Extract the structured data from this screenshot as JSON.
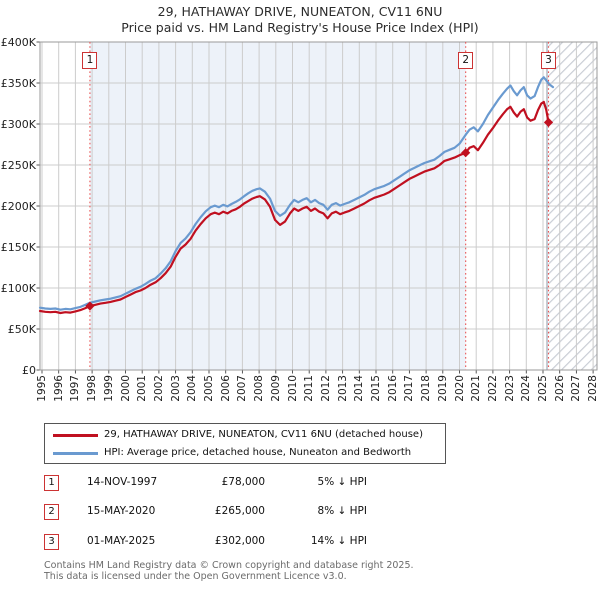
{
  "title": "29, HATHAWAY DRIVE, NUNEATON, CV11 6NU",
  "subtitle": "Price paid vs. HM Land Registry's House Price Index (HPI)",
  "chart_data": {
    "type": "line",
    "grid": true,
    "x_axis": {
      "tick_years": [
        1995,
        1996,
        1997,
        1998,
        1999,
        2000,
        2001,
        2002,
        2003,
        2004,
        2005,
        2006,
        2007,
        2008,
        2009,
        2010,
        2011,
        2012,
        2013,
        2014,
        2015,
        2016,
        2017,
        2018,
        2019,
        2020,
        2021,
        2022,
        2023,
        2024,
        2025,
        2026,
        2027,
        2028
      ],
      "range": [
        1994.85,
        2028.3
      ]
    },
    "y_axis": {
      "ticks": [
        {
          "value": 0,
          "label": "£0"
        },
        {
          "value": 50,
          "label": "£50K"
        },
        {
          "value": 100,
          "label": "£100K"
        },
        {
          "value": 150,
          "label": "£150K"
        },
        {
          "value": 200,
          "label": "£200K"
        },
        {
          "value": 250,
          "label": "£250K"
        },
        {
          "value": 300,
          "label": "£300K"
        },
        {
          "value": 350,
          "label": "£350K"
        },
        {
          "value": 400,
          "label": "£400K"
        }
      ],
      "unit": "£K",
      "range": [
        0,
        400
      ]
    },
    "shaded_region": {
      "from_year": 1997.87,
      "to_year": 2020.37,
      "color": "#edf2f9"
    },
    "hatched_region": {
      "from_year": 2025.33,
      "line_color": "#c9cdd5"
    },
    "marker_line_color": "#e85555",
    "series": [
      {
        "name": "price-paid",
        "color": "#c01020",
        "points": [
          [
            1994.88,
            72
          ],
          [
            1995.2,
            71
          ],
          [
            1995.5,
            70.5
          ],
          [
            1995.8,
            71
          ],
          [
            1996.1,
            69.5
          ],
          [
            1996.4,
            70.5
          ],
          [
            1996.7,
            70
          ],
          [
            1997.0,
            71.5
          ],
          [
            1997.3,
            73
          ],
          [
            1997.6,
            75.5
          ],
          [
            1997.87,
            78
          ],
          [
            1998.2,
            79.5
          ],
          [
            1998.5,
            81
          ],
          [
            1998.8,
            82
          ],
          [
            1999.1,
            83
          ],
          [
            1999.4,
            84.5
          ],
          [
            1999.7,
            86
          ],
          [
            2000.0,
            89
          ],
          [
            2000.3,
            92
          ],
          [
            2000.6,
            95
          ],
          [
            2000.9,
            97
          ],
          [
            2001.2,
            100
          ],
          [
            2001.5,
            104
          ],
          [
            2001.8,
            107
          ],
          [
            2002.1,
            112
          ],
          [
            2002.4,
            118
          ],
          [
            2002.7,
            126
          ],
          [
            2003.0,
            138
          ],
          [
            2003.3,
            148
          ],
          [
            2003.6,
            153
          ],
          [
            2003.9,
            160
          ],
          [
            2004.2,
            170
          ],
          [
            2004.5,
            178
          ],
          [
            2004.8,
            185
          ],
          [
            2005.1,
            190
          ],
          [
            2005.35,
            192
          ],
          [
            2005.6,
            190
          ],
          [
            2005.85,
            193
          ],
          [
            2006.1,
            191
          ],
          [
            2006.35,
            194
          ],
          [
            2006.6,
            196
          ],
          [
            2006.85,
            199
          ],
          [
            2007.1,
            203
          ],
          [
            2007.35,
            206
          ],
          [
            2007.6,
            209
          ],
          [
            2007.85,
            211
          ],
          [
            2008.05,
            212
          ],
          [
            2008.35,
            208
          ],
          [
            2008.65,
            199
          ],
          [
            2008.95,
            183
          ],
          [
            2009.25,
            177
          ],
          [
            2009.55,
            181
          ],
          [
            2009.85,
            191
          ],
          [
            2010.1,
            197
          ],
          [
            2010.35,
            194
          ],
          [
            2010.6,
            197
          ],
          [
            2010.85,
            199
          ],
          [
            2011.1,
            194
          ],
          [
            2011.35,
            197
          ],
          [
            2011.6,
            193
          ],
          [
            2011.85,
            191
          ],
          [
            2012.1,
            185
          ],
          [
            2012.35,
            191
          ],
          [
            2012.6,
            193
          ],
          [
            2012.85,
            190
          ],
          [
            2013.1,
            192
          ],
          [
            2013.4,
            194
          ],
          [
            2013.7,
            197
          ],
          [
            2014.0,
            200
          ],
          [
            2014.3,
            203
          ],
          [
            2014.6,
            207
          ],
          [
            2014.9,
            210
          ],
          [
            2015.2,
            212
          ],
          [
            2015.5,
            214
          ],
          [
            2015.8,
            217
          ],
          [
            2016.1,
            221
          ],
          [
            2016.4,
            225
          ],
          [
            2016.7,
            229
          ],
          [
            2017.0,
            233
          ],
          [
            2017.3,
            236
          ],
          [
            2017.6,
            239
          ],
          [
            2017.9,
            242
          ],
          [
            2018.2,
            244
          ],
          [
            2018.5,
            246
          ],
          [
            2018.8,
            250
          ],
          [
            2019.1,
            255
          ],
          [
            2019.4,
            257
          ],
          [
            2019.7,
            259
          ],
          [
            2020.0,
            262
          ],
          [
            2020.37,
            265
          ],
          [
            2020.6,
            271
          ],
          [
            2020.85,
            273
          ],
          [
            2021.1,
            268
          ],
          [
            2021.4,
            277
          ],
          [
            2021.7,
            287
          ],
          [
            2022.0,
            295
          ],
          [
            2022.3,
            304
          ],
          [
            2022.6,
            312
          ],
          [
            2022.85,
            318
          ],
          [
            2023.05,
            321
          ],
          [
            2023.25,
            314
          ],
          [
            2023.45,
            309
          ],
          [
            2023.65,
            315
          ],
          [
            2023.85,
            318
          ],
          [
            2024.05,
            308
          ],
          [
            2024.25,
            304
          ],
          [
            2024.5,
            306
          ],
          [
            2024.7,
            317
          ],
          [
            2024.9,
            325
          ],
          [
            2025.05,
            327
          ],
          [
            2025.2,
            317
          ],
          [
            2025.33,
            302
          ]
        ]
      },
      {
        "name": "hpi",
        "color": "#6a9ad0",
        "points": [
          [
            1994.88,
            76
          ],
          [
            1995.2,
            75
          ],
          [
            1995.5,
            74.5
          ],
          [
            1995.8,
            75
          ],
          [
            1996.1,
            73.5
          ],
          [
            1996.4,
            74.5
          ],
          [
            1996.7,
            74
          ],
          [
            1997.0,
            75.5
          ],
          [
            1997.3,
            77
          ],
          [
            1997.6,
            79.5
          ],
          [
            1997.87,
            82
          ],
          [
            1998.2,
            83.5
          ],
          [
            1998.5,
            85
          ],
          [
            1998.8,
            86
          ],
          [
            1999.1,
            87
          ],
          [
            1999.4,
            88.5
          ],
          [
            1999.7,
            90
          ],
          [
            2000.0,
            93
          ],
          [
            2000.3,
            96
          ],
          [
            2000.6,
            99
          ],
          [
            2000.9,
            101.5
          ],
          [
            2001.2,
            105
          ],
          [
            2001.5,
            109
          ],
          [
            2001.8,
            112
          ],
          [
            2002.1,
            117.5
          ],
          [
            2002.4,
            124
          ],
          [
            2002.7,
            132.5
          ],
          [
            2003.0,
            145
          ],
          [
            2003.3,
            155
          ],
          [
            2003.6,
            160.5
          ],
          [
            2003.9,
            168
          ],
          [
            2004.2,
            178
          ],
          [
            2004.5,
            186.5
          ],
          [
            2004.8,
            193.5
          ],
          [
            2005.1,
            198.5
          ],
          [
            2005.35,
            200.5
          ],
          [
            2005.6,
            198.5
          ],
          [
            2005.85,
            201.5
          ],
          [
            2006.1,
            199.5
          ],
          [
            2006.35,
            202.5
          ],
          [
            2006.6,
            205
          ],
          [
            2006.85,
            208
          ],
          [
            2007.1,
            212
          ],
          [
            2007.35,
            215.5
          ],
          [
            2007.6,
            218.5
          ],
          [
            2007.85,
            220.5
          ],
          [
            2008.05,
            221.5
          ],
          [
            2008.35,
            217.5
          ],
          [
            2008.65,
            209
          ],
          [
            2008.95,
            194
          ],
          [
            2009.25,
            188
          ],
          [
            2009.55,
            192
          ],
          [
            2009.85,
            201.5
          ],
          [
            2010.1,
            207.5
          ],
          [
            2010.35,
            204.5
          ],
          [
            2010.6,
            207.5
          ],
          [
            2010.85,
            209.5
          ],
          [
            2011.1,
            204.5
          ],
          [
            2011.35,
            207.5
          ],
          [
            2011.6,
            203.5
          ],
          [
            2011.85,
            201.5
          ],
          [
            2012.1,
            195.5
          ],
          [
            2012.35,
            201.5
          ],
          [
            2012.6,
            203.5
          ],
          [
            2012.85,
            200.5
          ],
          [
            2013.1,
            202.5
          ],
          [
            2013.4,
            204.5
          ],
          [
            2013.7,
            207.5
          ],
          [
            2014.0,
            210.5
          ],
          [
            2014.3,
            213.5
          ],
          [
            2014.6,
            217.5
          ],
          [
            2014.9,
            220.5
          ],
          [
            2015.2,
            222.5
          ],
          [
            2015.5,
            224.5
          ],
          [
            2015.8,
            227.5
          ],
          [
            2016.1,
            231.5
          ],
          [
            2016.4,
            235.5
          ],
          [
            2016.7,
            239.5
          ],
          [
            2017.0,
            243.5
          ],
          [
            2017.3,
            246.5
          ],
          [
            2017.6,
            249.5
          ],
          [
            2017.9,
            252.5
          ],
          [
            2018.2,
            254.5
          ],
          [
            2018.5,
            256.5
          ],
          [
            2018.8,
            261
          ],
          [
            2019.1,
            266
          ],
          [
            2019.4,
            268.5
          ],
          [
            2019.7,
            271
          ],
          [
            2020.0,
            276
          ],
          [
            2020.37,
            287
          ],
          [
            2020.6,
            293
          ],
          [
            2020.85,
            296
          ],
          [
            2021.1,
            291
          ],
          [
            2021.4,
            300
          ],
          [
            2021.7,
            311
          ],
          [
            2022.0,
            320
          ],
          [
            2022.3,
            329
          ],
          [
            2022.6,
            337
          ],
          [
            2022.85,
            343
          ],
          [
            2023.05,
            347
          ],
          [
            2023.25,
            340
          ],
          [
            2023.45,
            335
          ],
          [
            2023.65,
            341
          ],
          [
            2023.85,
            345
          ],
          [
            2024.05,
            335
          ],
          [
            2024.25,
            331
          ],
          [
            2024.5,
            334
          ],
          [
            2024.7,
            345
          ],
          [
            2024.9,
            354
          ],
          [
            2025.05,
            357
          ],
          [
            2025.2,
            353
          ],
          [
            2025.4,
            348
          ],
          [
            2025.6,
            345
          ]
        ]
      }
    ],
    "sales": [
      {
        "label": "1",
        "year": 1997.87,
        "price_k": 78
      },
      {
        "label": "2",
        "year": 2020.37,
        "price_k": 265
      },
      {
        "label": "3",
        "year": 2025.33,
        "price_k": 302
      }
    ]
  },
  "legend": {
    "items": [
      {
        "label": "29, HATHAWAY DRIVE, NUNEATON, CV11 6NU (detached house)",
        "color": "#c01020"
      },
      {
        "label": "HPI: Average price, detached house, Nuneaton and Bedworth",
        "color": "#6a9ad0"
      }
    ]
  },
  "table": {
    "rows": [
      {
        "num": "1",
        "date": "14-NOV-1997",
        "price": "£78,000",
        "delta": "5% ↓ HPI"
      },
      {
        "num": "2",
        "date": "15-MAY-2020",
        "price": "£265,000",
        "delta": "8% ↓ HPI"
      },
      {
        "num": "3",
        "date": "01-MAY-2025",
        "price": "£302,000",
        "delta": "14% ↓ HPI"
      }
    ]
  },
  "footer": {
    "line1": "Contains HM Land Registry data © Crown copyright and database right 2025.",
    "line2": "This data is licensed under the Open Government Licence v3.0."
  }
}
